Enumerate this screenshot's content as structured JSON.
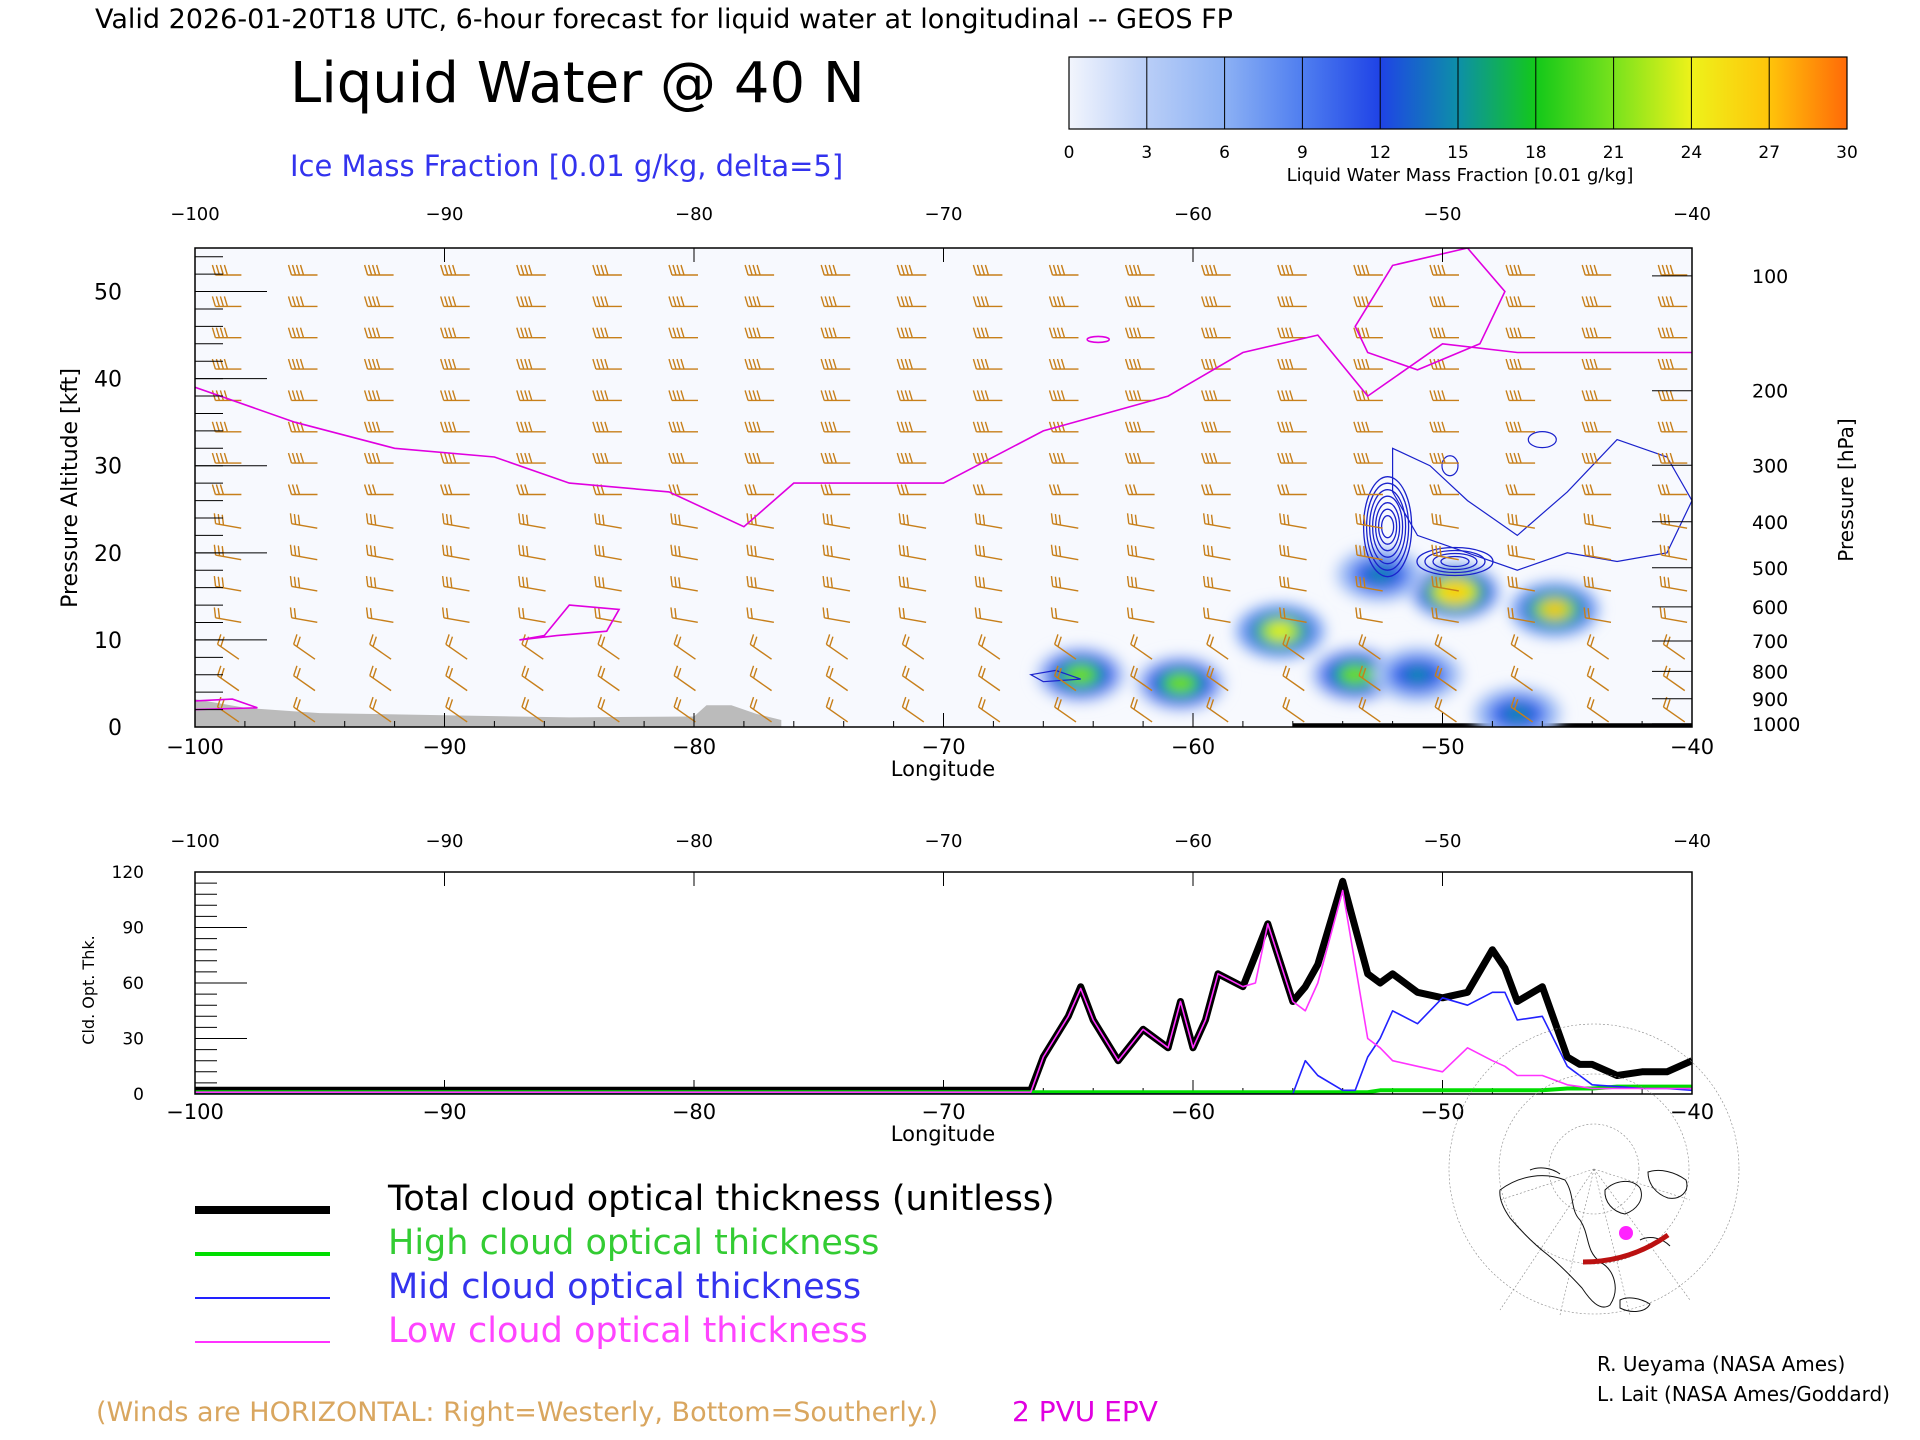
{
  "header": {
    "valid_line": "Valid 2026-01-20T18 UTC, 6-hour forecast for liquid water at longitudinal -- GEOS FP",
    "title": "Liquid Water @ 40 N",
    "subtitle": "Ice Mass Fraction [0.01 g/kg, delta=5]"
  },
  "colorbar": {
    "label": "Liquid Water Mass Fraction [0.01 g/kg]",
    "ticks": [
      "0",
      "3",
      "6",
      "9",
      "12",
      "15",
      "18",
      "21",
      "24",
      "27",
      "30"
    ],
    "colors": [
      "#f2f5fd",
      "#b9cef7",
      "#8cb1f4",
      "#4f7ef0",
      "#1f43e6",
      "#0d8fa8",
      "#13c81a",
      "#78e21c",
      "#eef21a",
      "#ffc40a",
      "#ff6a08"
    ]
  },
  "chart_data": [
    {
      "type": "heatmap",
      "title": "Liquid Water @ 40 N",
      "subtitle": "Ice Mass Fraction [0.01 g/kg, delta=5]",
      "xlabel": "Longitude",
      "ylabel_left": "Pressure Altitude [kft]",
      "ylabel_right": "Pressure [hPa]",
      "xlim": [
        -100,
        -40
      ],
      "ylim": [
        0,
        55
      ],
      "x_ticks": [
        "-100",
        "-90",
        "-80",
        "-70",
        "-60",
        "-50",
        "-40"
      ],
      "y_ticks_left": [
        "0",
        "10",
        "20",
        "30",
        "40",
        "50"
      ],
      "y_ticks_right": [
        "100",
        "200",
        "300",
        "400",
        "500",
        "600",
        "700",
        "800",
        "900",
        "1000"
      ],
      "liquid_water_blobs": [
        {
          "lon": -64.5,
          "kft": 6,
          "peak": 24
        },
        {
          "lon": -60.5,
          "kft": 5,
          "peak": 22
        },
        {
          "lon": -56.5,
          "kft": 11,
          "peak": 27
        },
        {
          "lon": -53.5,
          "kft": 6,
          "peak": 24
        },
        {
          "lon": -51,
          "kft": 6,
          "peak": 16
        },
        {
          "lon": -49.5,
          "kft": 15.5,
          "peak": 30
        },
        {
          "lon": -45.5,
          "kft": 13.5,
          "peak": 28
        },
        {
          "lon": -52.5,
          "kft": 17.5,
          "peak": 15
        },
        {
          "lon": -47,
          "kft": 1.5,
          "peak": 16
        }
      ],
      "ice_max": 35,
      "epv_2pvu": [
        {
          "lon": -100,
          "kft": 39
        },
        {
          "lon": -96,
          "kft": 35
        },
        {
          "lon": -92,
          "kft": 32
        },
        {
          "lon": -88,
          "kft": 31
        },
        {
          "lon": -85,
          "kft": 28
        },
        {
          "lon": -81,
          "kft": 27
        },
        {
          "lon": -78,
          "kft": 23
        },
        {
          "lon": -76,
          "kft": 28
        },
        {
          "lon": -70,
          "kft": 28
        },
        {
          "lon": -66,
          "kft": 34
        },
        {
          "lon": -61,
          "kft": 38
        },
        {
          "lon": -58,
          "kft": 43
        },
        {
          "lon": -55,
          "kft": 45
        },
        {
          "lon": -53,
          "kft": 38
        },
        {
          "lon": -50,
          "kft": 44
        },
        {
          "lon": -47,
          "kft": 43
        },
        {
          "lon": -44,
          "kft": 43
        },
        {
          "lon": -40,
          "kft": 43
        }
      ]
    },
    {
      "type": "line",
      "xlabel": "Longitude",
      "ylabel": "Cld. Opt. Thk.",
      "xlim": [
        -100,
        -40
      ],
      "ylim": [
        0,
        120
      ],
      "x_ticks": [
        "-100",
        "-90",
        "-80",
        "-70",
        "-60",
        "-50",
        "-40"
      ],
      "y_ticks": [
        "0",
        "30",
        "60",
        "90",
        "120"
      ],
      "x": [
        -100,
        -66.5,
        -66,
        -65,
        -64.5,
        -64,
        -63,
        -62,
        -61,
        -60.5,
        -60,
        -59.5,
        -59,
        -58,
        -57.5,
        -57,
        -56,
        -55.5,
        -55,
        -54,
        -53.5,
        -53,
        -52.5,
        -52,
        -51,
        -50,
        -49,
        -48,
        -47.5,
        -47,
        -46,
        -45,
        -44.5,
        -44,
        -43,
        -42,
        -41,
        -40
      ],
      "series": [
        {
          "name": "Total cloud optical thickness (unitless)",
          "color": "#000000",
          "values": [
            2,
            2,
            20,
            42,
            58,
            40,
            18,
            35,
            25,
            50,
            25,
            40,
            65,
            58,
            75,
            92,
            50,
            58,
            70,
            115,
            90,
            65,
            60,
            65,
            55,
            52,
            55,
            78,
            68,
            50,
            58,
            20,
            16,
            16,
            10,
            12,
            12,
            18
          ]
        },
        {
          "name": "High cloud optical thickness",
          "color": "#00dd00",
          "values": [
            1,
            1,
            1,
            1,
            1,
            1,
            1,
            1,
            1,
            1,
            1,
            1,
            1,
            1,
            1,
            1,
            1,
            1,
            1,
            1,
            1,
            1,
            2,
            2,
            2,
            2,
            2,
            2,
            2,
            2,
            2,
            3,
            3,
            3,
            4,
            4,
            4,
            4
          ]
        },
        {
          "name": "Mid cloud optical thickness",
          "color": "#2222ff",
          "values": [
            0,
            0,
            0,
            0,
            0,
            0,
            0,
            0,
            0,
            0,
            0,
            0,
            0,
            0,
            0,
            0,
            0,
            18,
            10,
            2,
            2,
            20,
            30,
            45,
            38,
            52,
            48,
            55,
            55,
            40,
            42,
            15,
            10,
            5,
            4,
            3,
            3,
            2
          ]
        },
        {
          "name": "Low cloud optical thickness",
          "color": "#ff33ff",
          "values": [
            1,
            1,
            20,
            42,
            57,
            40,
            18,
            35,
            25,
            50,
            25,
            40,
            65,
            58,
            60,
            92,
            50,
            45,
            60,
            110,
            70,
            30,
            25,
            18,
            15,
            12,
            25,
            18,
            15,
            10,
            10,
            5,
            4,
            3,
            3,
            3,
            3,
            3
          ]
        }
      ]
    }
  ],
  "legend": {
    "items": [
      {
        "label": "Total cloud optical thickness (unitless)",
        "color": "#000000"
      },
      {
        "label": "High cloud optical thickness",
        "color": "#00dd00"
      },
      {
        "label": "Mid cloud optical thickness",
        "color": "#2222ff"
      },
      {
        "label": "Low cloud optical thickness",
        "color": "#ff33ff"
      }
    ]
  },
  "footer": {
    "winds_note": "(Winds are HORIZONTAL: Right=Westerly, Bottom=Southerly.)",
    "epv_label": "2 PVU EPV",
    "credit_1": "R. Ueyama (NASA Ames)",
    "credit_2": "L. Lait (NASA Ames/Goddard)"
  },
  "colors": {
    "wind_barb": "#c77f1a",
    "epv": "#e000e0",
    "ice_contour": "#1a22cc",
    "terrain": "#bbbbbb"
  }
}
